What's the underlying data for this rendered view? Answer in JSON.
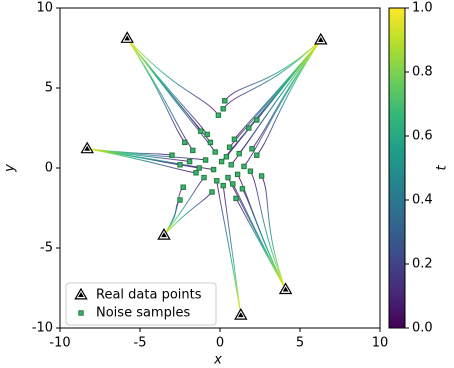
{
  "chart_data": {
    "type": "scatter",
    "xlabel": "x",
    "ylabel": "y",
    "xlim": [
      -10,
      10
    ],
    "ylim": [
      -10,
      10
    ],
    "xticks": [
      -10,
      -5,
      0,
      5,
      10
    ],
    "yticks": [
      -10,
      -5,
      0,
      5,
      10
    ],
    "series": [
      {
        "name": "Real data points",
        "marker": "triangle",
        "color": "#000000",
        "x": [
          -5.8,
          6.3,
          -8.3,
          -3.5,
          4.1,
          1.3
        ],
        "values": [
          8.1,
          8.0,
          1.2,
          -4.2,
          -7.6,
          -9.2
        ]
      },
      {
        "name": "Noise samples",
        "marker": "square",
        "color": "#1f7a3a",
        "x": [
          0.3,
          0.2,
          -0.1,
          2.3,
          1.8,
          -1.2,
          -0.8,
          -2.2,
          2.3,
          -3.0,
          -2.5,
          2.6,
          -2.3,
          -2.5,
          1.0,
          -0.5,
          0.5,
          0.1,
          -0.3,
          0.6,
          -0.9,
          1.2,
          1.5,
          -1.5,
          -1.7,
          0.8,
          -0.2,
          1.9,
          -1.0,
          0.4,
          1.1,
          -0.6,
          2.0,
          -1.3,
          0.9,
          -0.4,
          1.4,
          -1.9,
          0.2,
          0.7
        ],
        "values": [
          4.2,
          3.7,
          3.3,
          3.0,
          2.5,
          2.3,
          2.1,
          1.6,
          0.8,
          0.8,
          0.2,
          -0.5,
          -1.2,
          -2.0,
          -1.9,
          -1.5,
          -0.6,
          0.4,
          1.0,
          1.3,
          0.5,
          0.9,
          0.1,
          -0.3,
          1.1,
          -1.0,
          -0.8,
          -0.2,
          -0.6,
          0.7,
          -0.4,
          1.6,
          1.2,
          0.0,
          1.8,
          -0.1,
          -1.3,
          0.4,
          -1.1,
          0.2
        ]
      }
    ],
    "legend": "lower left",
    "colorbar": {
      "label": "t",
      "lim": [
        0,
        1
      ],
      "ticks": [
        {
          "value": 0,
          "label": "0.0"
        },
        0.2,
        0.4,
        0.6,
        0.8,
        {
          "value": 1,
          "label": "1.0"
        }
      ],
      "colors": [
        "#440154",
        "#482878",
        "#3e4a89",
        "#31688e",
        "#26828e",
        "#1f9e89",
        "#35b779",
        "#6ece58",
        "#b5de2b",
        "#fde725"
      ]
    }
  }
}
